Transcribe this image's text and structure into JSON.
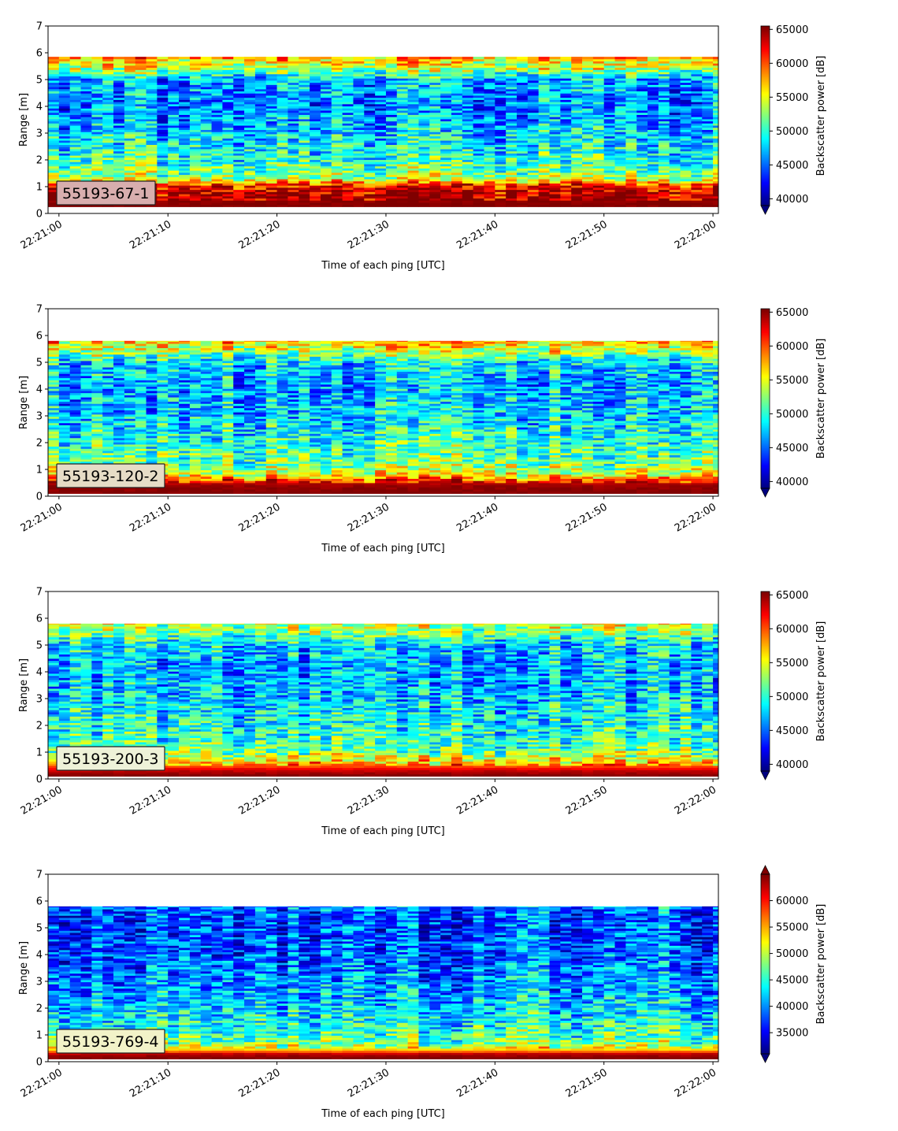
{
  "chart_data": [
    {
      "type": "heatmap",
      "label": "55193-67-1",
      "label_box_color": "#d8aeae",
      "xlabel": "Time of each ping [UTC]",
      "ylabel": "Range [m]",
      "xticks": [
        "22:21:00",
        "22:21:10",
        "22:21:20",
        "22:21:30",
        "22:21:40",
        "22:21:50",
        "22:22:00"
      ],
      "yticks": [
        "0",
        "1",
        "2",
        "3",
        "4",
        "5",
        "6",
        "7"
      ],
      "xlim_seconds": [
        -1,
        60.5
      ],
      "ylim": [
        0,
        7
      ],
      "data_top_m": 5.85,
      "data_bottom_m": 0.25,
      "colormap": "jet",
      "colorbar": {
        "label": "Backscatter power [dB]",
        "vmin": 39000,
        "vmax": 65500,
        "ticks": [
          "40000",
          "45000",
          "50000",
          "55000",
          "60000",
          "65000"
        ],
        "extend_min": true,
        "extend_max": false
      },
      "profile_m": [
        [
          0.25,
          1.0
        ],
        [
          0.55,
          0.98
        ],
        [
          0.9,
          0.93
        ],
        [
          1.1,
          0.82
        ],
        [
          1.3,
          0.55
        ],
        [
          2.0,
          0.42
        ],
        [
          3.0,
          0.33
        ],
        [
          4.0,
          0.26
        ],
        [
          5.0,
          0.3
        ],
        [
          5.4,
          0.55
        ],
        [
          5.85,
          0.72
        ]
      ]
    },
    {
      "type": "heatmap",
      "label": "55193-120-2",
      "label_box_color": "#e6dcc6",
      "xlabel": "Time of each ping [UTC]",
      "ylabel": "Range [m]",
      "xticks": [
        "22:21:00",
        "22:21:10",
        "22:21:20",
        "22:21:30",
        "22:21:40",
        "22:21:50",
        "22:22:00"
      ],
      "yticks": [
        "0",
        "1",
        "2",
        "3",
        "4",
        "5",
        "6",
        "7"
      ],
      "xlim_seconds": [
        -1,
        60.5
      ],
      "ylim": [
        0,
        7
      ],
      "data_top_m": 5.8,
      "data_bottom_m": 0.1,
      "colormap": "jet",
      "colorbar": {
        "label": "Backscatter power [dB]",
        "vmin": 39000,
        "vmax": 65500,
        "ticks": [
          "40000",
          "45000",
          "50000",
          "55000",
          "60000",
          "65000"
        ],
        "extend_min": true,
        "extend_max": false
      },
      "profile_m": [
        [
          0.1,
          1.0
        ],
        [
          0.4,
          0.97
        ],
        [
          0.6,
          0.82
        ],
        [
          0.8,
          0.62
        ],
        [
          1.2,
          0.5
        ],
        [
          2.0,
          0.42
        ],
        [
          3.0,
          0.34
        ],
        [
          4.0,
          0.3
        ],
        [
          5.0,
          0.35
        ],
        [
          5.4,
          0.55
        ],
        [
          5.8,
          0.7
        ]
      ]
    },
    {
      "type": "heatmap",
      "label": "55193-200-3",
      "label_box_color": "#eef2d8",
      "xlabel": "Time of each ping [UTC]",
      "ylabel": "Range [m]",
      "xticks": [
        "22:21:00",
        "22:21:10",
        "22:21:20",
        "22:21:30",
        "22:21:40",
        "22:21:50",
        "22:22:00"
      ],
      "yticks": [
        "0",
        "1",
        "2",
        "3",
        "4",
        "5",
        "6",
        "7"
      ],
      "xlim_seconds": [
        -1,
        60.5
      ],
      "ylim": [
        0,
        7
      ],
      "data_top_m": 5.8,
      "data_bottom_m": 0.1,
      "colormap": "jet",
      "colorbar": {
        "label": "Backscatter power [dB]",
        "vmin": 39000,
        "vmax": 65500,
        "ticks": [
          "40000",
          "45000",
          "50000",
          "55000",
          "60000",
          "65000"
        ],
        "extend_min": true,
        "extend_max": false
      },
      "profile_m": [
        [
          0.1,
          1.0
        ],
        [
          0.3,
          0.92
        ],
        [
          0.5,
          0.75
        ],
        [
          0.8,
          0.58
        ],
        [
          1.2,
          0.46
        ],
        [
          2.0,
          0.4
        ],
        [
          3.0,
          0.33
        ],
        [
          4.0,
          0.3
        ],
        [
          5.0,
          0.33
        ],
        [
          5.4,
          0.48
        ],
        [
          5.8,
          0.58
        ]
      ]
    },
    {
      "type": "heatmap",
      "label": "55193-769-4",
      "label_box_color": "#f2f2c8",
      "xlabel": "Time of each ping [UTC]",
      "ylabel": "Range [m]",
      "xticks": [
        "22:21:00",
        "22:21:10",
        "22:21:20",
        "22:21:30",
        "22:21:40",
        "22:21:50",
        "22:22:00"
      ],
      "yticks": [
        "0",
        "1",
        "2",
        "3",
        "4",
        "5",
        "6",
        "7"
      ],
      "xlim_seconds": [
        -1,
        60.5
      ],
      "ylim": [
        0,
        7
      ],
      "data_top_m": 5.8,
      "data_bottom_m": 0.1,
      "colormap": "jet",
      "colorbar": {
        "label": "Backscatter power [dB]",
        "vmin": 31000,
        "vmax": 65000,
        "ticks": [
          "35000",
          "40000",
          "45000",
          "50000",
          "55000",
          "60000"
        ],
        "extend_min": true,
        "extend_max": true
      },
      "profile_m": [
        [
          0.1,
          1.0
        ],
        [
          0.25,
          0.95
        ],
        [
          0.4,
          0.68
        ],
        [
          0.7,
          0.5
        ],
        [
          1.2,
          0.42
        ],
        [
          2.0,
          0.34
        ],
        [
          3.0,
          0.27
        ],
        [
          4.0,
          0.22
        ],
        [
          5.0,
          0.2
        ],
        [
          5.5,
          0.22
        ],
        [
          5.8,
          0.25
        ]
      ]
    }
  ]
}
